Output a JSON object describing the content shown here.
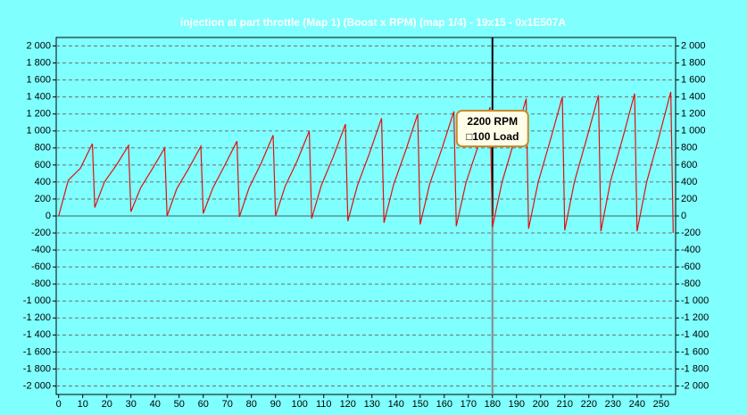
{
  "chart_data": {
    "type": "line",
    "title": "injection at part throttle (Map 1) (Boost x RPM) (map 1/4) - 19x15 - 0x1E507A",
    "x": [
      0,
      4,
      9,
      14,
      15,
      19,
      24,
      29,
      30,
      34,
      39,
      44,
      45,
      49,
      54,
      59,
      60,
      64,
      69,
      74,
      75,
      79,
      84,
      89,
      90,
      94,
      99,
      104,
      105,
      109,
      114,
      119,
      120,
      124,
      129,
      134,
      135,
      139,
      144,
      149,
      150,
      154,
      159,
      164,
      165,
      169,
      174,
      179,
      180,
      184,
      189,
      194,
      195,
      199,
      204,
      209,
      210,
      214,
      219,
      224,
      225,
      229,
      234,
      239,
      240,
      244,
      249,
      254,
      255
    ],
    "series": [
      {
        "color": "#e01010",
        "values": [
          0,
          420,
          560,
          850,
          100,
          400,
          600,
          830,
          50,
          330,
          560,
          800,
          0,
          320,
          560,
          820,
          30,
          330,
          600,
          880,
          -10,
          330,
          620,
          950,
          0,
          350,
          650,
          1000,
          -30,
          360,
          700,
          1080,
          -60,
          360,
          740,
          1150,
          -80,
          370,
          770,
          1200,
          -100,
          380,
          790,
          1230,
          -120,
          390,
          820,
          1280,
          -130,
          400,
          880,
          1380,
          -150,
          400,
          890,
          1400,
          -170,
          400,
          900,
          1420,
          -180,
          410,
          910,
          1440,
          -180,
          400,
          920,
          1460,
          -200
        ]
      }
    ],
    "xlim": [
      -1,
      256
    ],
    "xticks": [
      0,
      10,
      20,
      30,
      40,
      50,
      60,
      70,
      80,
      90,
      100,
      110,
      120,
      130,
      140,
      150,
      160,
      170,
      180,
      190,
      200,
      210,
      220,
      230,
      240,
      250
    ],
    "ylim": [
      -2100,
      2100
    ],
    "yticks": [
      {
        "value": -2000,
        "label": "-2 000"
      },
      {
        "value": -1800,
        "label": "-1 800"
      },
      {
        "value": -1600,
        "label": "-1 600"
      },
      {
        "value": -1400,
        "label": "-1 400"
      },
      {
        "value": -1200,
        "label": "-1 200"
      },
      {
        "value": -1000,
        "label": "-1 000"
      },
      -800,
      -600,
      -400,
      -200,
      0,
      200,
      400,
      600,
      800,
      {
        "value": 1000,
        "label": "1 000"
      },
      {
        "value": 1200,
        "label": "1 200"
      },
      {
        "value": 1400,
        "label": "1 400"
      },
      {
        "value": 1600,
        "label": "1 600"
      },
      {
        "value": 1800,
        "label": "1 800"
      },
      {
        "value": 2000,
        "label": "2 000"
      }
    ],
    "grid": true,
    "cursor_x": 180,
    "tooltip": [
      "2200 RPM",
      "□100 Load"
    ]
  }
}
